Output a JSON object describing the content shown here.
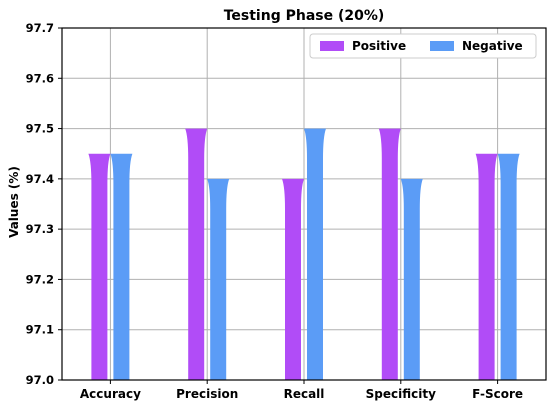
{
  "chart_data": {
    "type": "bar",
    "title": "Testing Phase (20%)",
    "xlabel": "",
    "ylabel": "Values (%)",
    "ylim": [
      97.0,
      97.7
    ],
    "yticks": [
      "97.0",
      "97.1",
      "97.2",
      "97.3",
      "97.4",
      "97.5",
      "97.6",
      "97.7"
    ],
    "categories": [
      "Accuracy",
      "Precision",
      "Recall",
      "Specificity",
      "F-Score"
    ],
    "series": [
      {
        "name": "Positive",
        "color": "#b14cf7",
        "values": [
          97.45,
          97.5,
          97.4,
          97.5,
          97.45
        ]
      },
      {
        "name": "Negative",
        "color": "#5b9cf6",
        "values": [
          97.45,
          97.4,
          97.5,
          97.4,
          97.45
        ]
      }
    ],
    "grid": true,
    "legend_position": "top-right"
  }
}
